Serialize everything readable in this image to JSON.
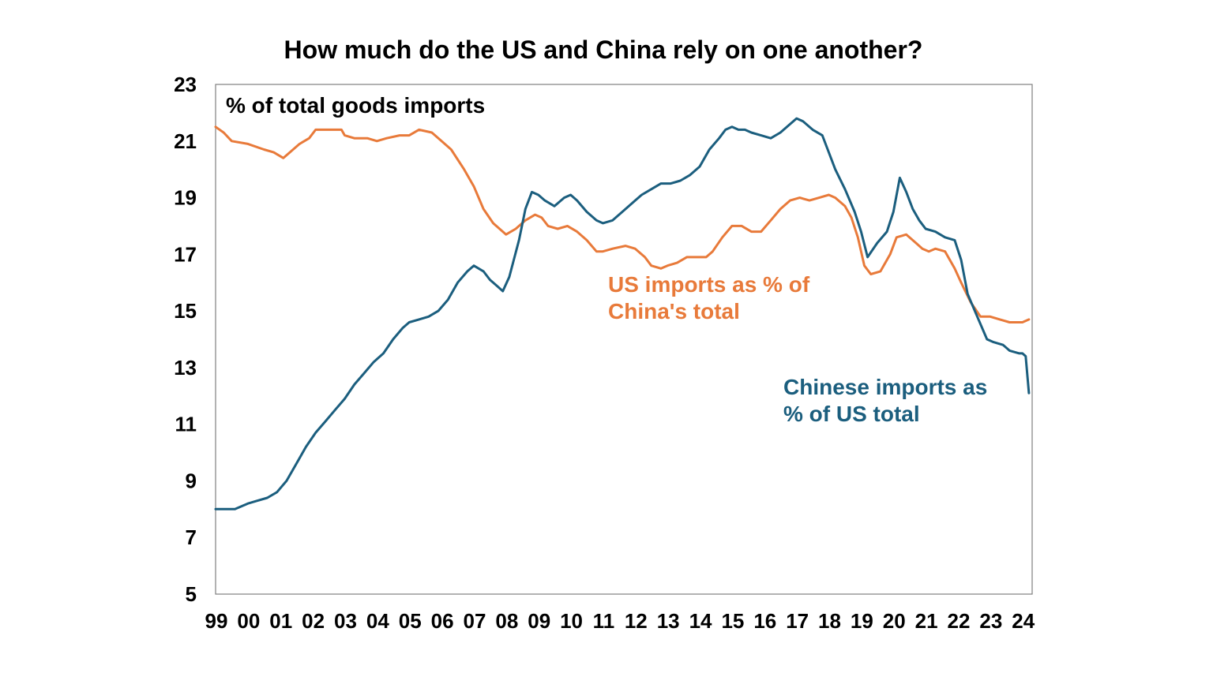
{
  "chart_data": {
    "type": "line",
    "title": "How much do the US and China rely on one another?",
    "ylabel": "% of total goods imports",
    "xlabel": "",
    "ylim": [
      5,
      23
    ],
    "xlim": [
      1999.0,
      2024.3
    ],
    "y_ticks": [
      "5",
      "7",
      "9",
      "11",
      "13",
      "15",
      "17",
      "19",
      "21",
      "23"
    ],
    "x_ticks": [
      "99",
      "00",
      "01",
      "02",
      "03",
      "04",
      "05",
      "06",
      "07",
      "08",
      "09",
      "10",
      "11",
      "12",
      "13",
      "14",
      "15",
      "16",
      "17",
      "18",
      "19",
      "20",
      "21",
      "22",
      "23",
      "24"
    ],
    "grid": false,
    "colors": {
      "us_imports": "#E87A3A",
      "china_imports": "#1B5E7E",
      "axis": "#7F7F7F"
    },
    "series": [
      {
        "name": "US imports as % of China's total",
        "label_lines": [
          "US imports as % of",
          "China's total"
        ],
        "color": "#E87A3A",
        "x": [
          1999.0,
          1999.25,
          1999.5,
          2000.0,
          2000.5,
          2000.8,
          2001.1,
          2001.3,
          2001.6,
          2001.9,
          2002.1,
          2002.5,
          2002.9,
          2003.0,
          2003.3,
          2003.7,
          2004.0,
          2004.3,
          2004.7,
          2005.0,
          2005.3,
          2005.7,
          2006.0,
          2006.3,
          2006.7,
          2007.0,
          2007.3,
          2007.6,
          2007.9,
          2008.0,
          2008.3,
          2008.6,
          2008.9,
          2009.1,
          2009.3,
          2009.6,
          2009.9,
          2010.2,
          2010.5,
          2010.8,
          2011.0,
          2011.3,
          2011.7,
          2012.0,
          2012.3,
          2012.5,
          2012.8,
          2013.0,
          2013.3,
          2013.6,
          2013.9,
          2014.2,
          2014.4,
          2014.7,
          2015.0,
          2015.3,
          2015.6,
          2015.9,
          2016.2,
          2016.5,
          2016.8,
          2017.1,
          2017.4,
          2017.7,
          2018.0,
          2018.2,
          2018.5,
          2018.7,
          2018.9,
          2019.1,
          2019.3,
          2019.6,
          2019.9,
          2020.1,
          2020.4,
          2020.7,
          2020.9,
          2021.1,
          2021.3,
          2021.6,
          2021.9,
          2022.1,
          2022.4,
          2022.7,
          2023.0,
          2023.3,
          2023.6,
          2024.0,
          2024.2
        ],
        "values": [
          21.5,
          21.3,
          21.0,
          20.9,
          20.7,
          20.6,
          20.4,
          20.6,
          20.9,
          21.1,
          21.4,
          21.4,
          21.4,
          21.2,
          21.1,
          21.1,
          21.0,
          21.1,
          21.2,
          21.2,
          21.4,
          21.3,
          21.0,
          20.7,
          20.0,
          19.4,
          18.6,
          18.1,
          17.8,
          17.7,
          17.9,
          18.2,
          18.4,
          18.3,
          18.0,
          17.9,
          18.0,
          17.8,
          17.5,
          17.1,
          17.1,
          17.2,
          17.3,
          17.2,
          16.9,
          16.6,
          16.5,
          16.6,
          16.7,
          16.9,
          16.9,
          16.9,
          17.1,
          17.6,
          18.0,
          18.0,
          17.8,
          17.8,
          18.2,
          18.6,
          18.9,
          19.0,
          18.9,
          19.0,
          19.1,
          19.0,
          18.7,
          18.3,
          17.6,
          16.6,
          16.3,
          16.4,
          17.0,
          17.6,
          17.7,
          17.4,
          17.2,
          17.1,
          17.2,
          17.1,
          16.5,
          16.0,
          15.3,
          14.8,
          14.8,
          14.7,
          14.6,
          14.6,
          14.7
        ]
      },
      {
        "name": "Chinese imports as % of US total",
        "label_lines": [
          "Chinese imports as",
          "% of US total"
        ],
        "color": "#1B5E7E",
        "x": [
          1999.0,
          1999.3,
          1999.6,
          2000.0,
          2000.3,
          2000.6,
          2000.9,
          2001.2,
          2001.5,
          2001.8,
          2002.1,
          2002.4,
          2002.7,
          2003.0,
          2003.3,
          2003.6,
          2003.9,
          2004.2,
          2004.5,
          2004.8,
          2005.0,
          2005.3,
          2005.6,
          2005.9,
          2006.2,
          2006.5,
          2006.8,
          2007.0,
          2007.3,
          2007.5,
          2007.7,
          2007.9,
          2008.1,
          2008.4,
          2008.6,
          2008.8,
          2009.0,
          2009.2,
          2009.5,
          2009.8,
          2010.0,
          2010.2,
          2010.5,
          2010.8,
          2011.0,
          2011.3,
          2011.6,
          2011.9,
          2012.2,
          2012.5,
          2012.8,
          2013.1,
          2013.4,
          2013.7,
          2014.0,
          2014.3,
          2014.6,
          2014.8,
          2015.0,
          2015.2,
          2015.4,
          2015.6,
          2015.9,
          2016.2,
          2016.5,
          2016.8,
          2017.0,
          2017.2,
          2017.5,
          2017.8,
          2018.0,
          2018.2,
          2018.5,
          2018.8,
          2019.0,
          2019.2,
          2019.5,
          2019.8,
          2020.0,
          2020.2,
          2020.4,
          2020.6,
          2020.8,
          2021.0,
          2021.3,
          2021.6,
          2021.9,
          2022.1,
          2022.3,
          2022.6,
          2022.9,
          2023.1,
          2023.4,
          2023.6,
          2023.9,
          2024.0,
          2024.1,
          2024.2
        ],
        "values": [
          8.0,
          8.0,
          8.0,
          8.2,
          8.3,
          8.4,
          8.6,
          9.0,
          9.6,
          10.2,
          10.7,
          11.1,
          11.5,
          11.9,
          12.4,
          12.8,
          13.2,
          13.5,
          14.0,
          14.4,
          14.6,
          14.7,
          14.8,
          15.0,
          15.4,
          16.0,
          16.4,
          16.6,
          16.4,
          16.1,
          15.9,
          15.7,
          16.2,
          17.5,
          18.6,
          19.2,
          19.1,
          18.9,
          18.7,
          19.0,
          19.1,
          18.9,
          18.5,
          18.2,
          18.1,
          18.2,
          18.5,
          18.8,
          19.1,
          19.3,
          19.5,
          19.5,
          19.6,
          19.8,
          20.1,
          20.7,
          21.1,
          21.4,
          21.5,
          21.4,
          21.4,
          21.3,
          21.2,
          21.1,
          21.3,
          21.6,
          21.8,
          21.7,
          21.4,
          21.2,
          20.6,
          20.0,
          19.3,
          18.5,
          17.8,
          16.9,
          17.4,
          17.8,
          18.5,
          19.7,
          19.2,
          18.6,
          18.2,
          17.9,
          17.8,
          17.6,
          17.5,
          16.8,
          15.6,
          14.8,
          14.0,
          13.9,
          13.8,
          13.6,
          13.5,
          13.5,
          13.4,
          12.1
        ]
      }
    ]
  }
}
